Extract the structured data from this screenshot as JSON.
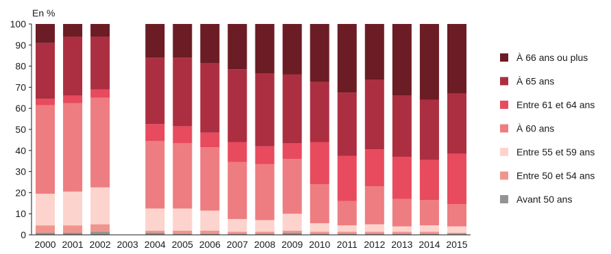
{
  "chart_data": {
    "type": "bar",
    "stacked": true,
    "ylabel": "En %",
    "ylim": [
      0,
      100
    ],
    "yticks": [
      0,
      10,
      20,
      30,
      40,
      50,
      60,
      70,
      80,
      90,
      100
    ],
    "grid": false,
    "legend_position": "right",
    "categories": [
      "2000",
      "2001",
      "2002",
      "2003",
      "2004",
      "2005",
      "2006",
      "2007",
      "2008",
      "2009",
      "2010",
      "2011",
      "2012",
      "2013",
      "2014",
      "2015"
    ],
    "series": [
      {
        "name": "Avant 50 ans",
        "color": "#939393",
        "values": [
          1,
          1,
          1.5,
          0,
          1,
          0.5,
          0.5,
          0.5,
          0.5,
          1,
          0.5,
          0.5,
          0.5,
          0.5,
          0.5,
          0.5
        ]
      },
      {
        "name": "Entre 50 et 54 ans",
        "color": "#f0958e",
        "values": [
          3.5,
          3.5,
          3.5,
          0,
          1,
          1.5,
          1.5,
          1,
          1,
          1,
          1,
          1,
          1,
          1,
          1,
          0.5
        ]
      },
      {
        "name": "Entre 55 et 59 ans",
        "color": "#fdd3cd",
        "values": [
          15,
          16,
          17.5,
          0,
          10.5,
          10.5,
          9.5,
          6,
          5.5,
          8,
          4,
          3,
          3.5,
          2.5,
          3,
          3
        ]
      },
      {
        "name": "À 60 ans",
        "color": "#ed7d80",
        "values": [
          42,
          42,
          42.5,
          0,
          32,
          31,
          30,
          27,
          26.5,
          26,
          18.5,
          11.5,
          18,
          13,
          12,
          10.5
        ]
      },
      {
        "name": "Entre 61 et 64 ans",
        "color": "#e84b5d",
        "values": [
          3,
          3.5,
          4,
          0,
          8,
          8,
          7,
          9.5,
          8.5,
          7.5,
          20,
          21.5,
          17.5,
          20,
          19,
          24
        ]
      },
      {
        "name": "À 65 ans",
        "color": "#ac2f41",
        "values": [
          26.5,
          28,
          25,
          0,
          31.5,
          32.5,
          33,
          34.5,
          34.5,
          32.5,
          28.5,
          30,
          33,
          29,
          28.5,
          28.5
        ]
      },
      {
        "name": "À 66 ans ou plus",
        "color": "#6b1c24",
        "values": [
          9,
          6,
          6,
          0,
          16,
          16,
          18.5,
          21.5,
          23.5,
          24,
          27.5,
          32.5,
          26.5,
          34,
          36,
          33
        ]
      }
    ]
  }
}
